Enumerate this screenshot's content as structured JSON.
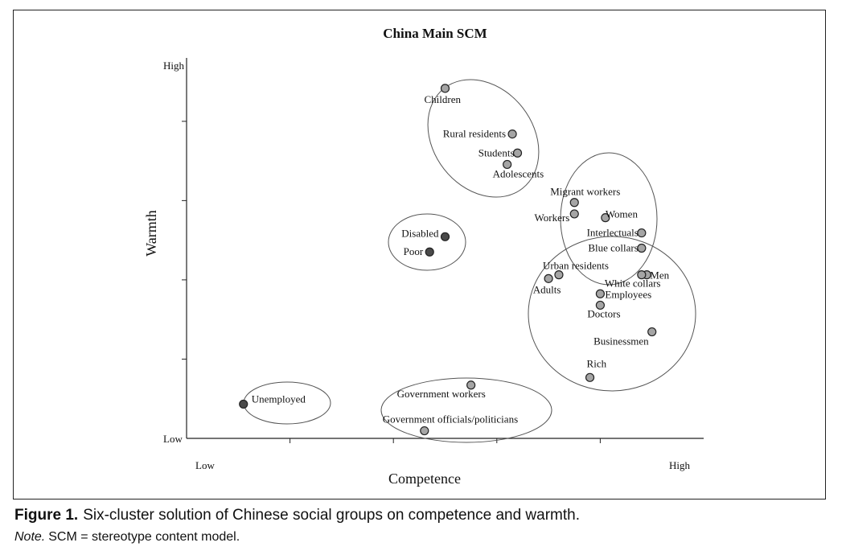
{
  "caption": {
    "figure_label": "Figure 1.",
    "text": "Six-cluster solution of Chinese social groups on competence and warmth.",
    "note_label": "Note.",
    "note_text": "SCM = stereotype content model."
  },
  "chart_data": {
    "type": "scatter",
    "title": "China Main SCM",
    "xlabel": "Competence",
    "ylabel": "Warmth",
    "x_ticks": {
      "low": "Low",
      "high": "High"
    },
    "y_ticks": {
      "low": "Low",
      "high": "High"
    },
    "xlim": [
      0,
      10
    ],
    "ylim": [
      0,
      10
    ],
    "grid": false,
    "colors": {
      "dark_point": "#4a4a4a",
      "light_point": "#a5a5a5"
    },
    "points": [
      {
        "label": "Children",
        "x": 5.0,
        "y": 9.2,
        "shade": "light"
      },
      {
        "label": "Rural residents",
        "x": 6.3,
        "y": 8.0,
        "shade": "light"
      },
      {
        "label": "Students",
        "x": 6.4,
        "y": 7.5,
        "shade": "light"
      },
      {
        "label": "Adolescents",
        "x": 6.2,
        "y": 7.2,
        "shade": "light"
      },
      {
        "label": "Migrant workers",
        "x": 7.5,
        "y": 6.2,
        "shade": "light"
      },
      {
        "label": "Workers",
        "x": 7.5,
        "y": 5.9,
        "shade": "light"
      },
      {
        "label": "Women",
        "x": 8.1,
        "y": 5.8,
        "shade": "light"
      },
      {
        "label": "Interlectuals",
        "x": 8.8,
        "y": 5.4,
        "shade": "light"
      },
      {
        "label": "Blue collars",
        "x": 8.8,
        "y": 5.0,
        "shade": "light"
      },
      {
        "label": "Disabled",
        "x": 5.0,
        "y": 5.3,
        "shade": "dark"
      },
      {
        "label": "Poor",
        "x": 4.7,
        "y": 4.9,
        "shade": "dark"
      },
      {
        "label": "Urban residents",
        "x": 7.2,
        "y": 4.3,
        "shade": "light"
      },
      {
        "label": "Adults",
        "x": 7.0,
        "y": 4.2,
        "shade": "light"
      },
      {
        "label": "Men",
        "x": 8.9,
        "y": 4.3,
        "shade": "light"
      },
      {
        "label": "White collars",
        "x": 8.8,
        "y": 4.3,
        "shade": "light"
      },
      {
        "label": "Employees",
        "x": 8.0,
        "y": 3.8,
        "shade": "light"
      },
      {
        "label": "Doctors",
        "x": 8.0,
        "y": 3.5,
        "shade": "light"
      },
      {
        "label": "Businessmen",
        "x": 9.0,
        "y": 2.8,
        "shade": "light"
      },
      {
        "label": "Rich",
        "x": 7.8,
        "y": 1.6,
        "shade": "light"
      },
      {
        "label": "Unemployed",
        "x": 1.1,
        "y": 0.9,
        "shade": "dark"
      },
      {
        "label": "Government workers",
        "x": 5.5,
        "y": 1.4,
        "shade": "light"
      },
      {
        "label": "Government officials/politicians",
        "x": 4.6,
        "y": 0.2,
        "shade": "light"
      }
    ],
    "clusters": 6
  }
}
